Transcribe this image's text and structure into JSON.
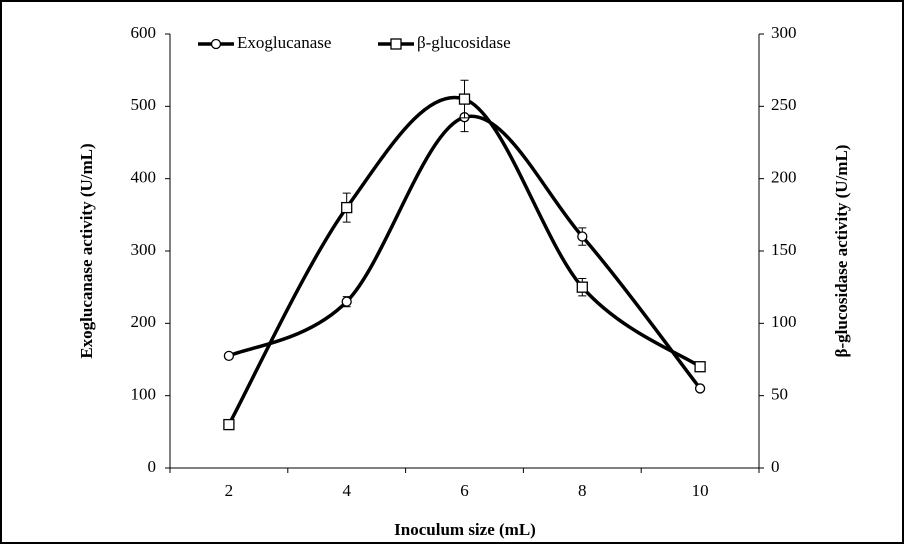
{
  "chart_data": {
    "type": "line",
    "x_label": "Inoculum size (mL)",
    "y_label": "Exoglucanase activity (U/mL)",
    "y2_label": "β-glucosidase activity (U/mL)",
    "categories": [
      "2",
      "4",
      "6",
      "8",
      "10"
    ],
    "ylim": [
      0,
      600
    ],
    "yticks": [
      0,
      100,
      200,
      300,
      400,
      500,
      600
    ],
    "y2lim": [
      0,
      300
    ],
    "y2ticks": [
      0,
      50,
      100,
      150,
      200,
      250,
      300
    ],
    "legend": "top-left",
    "series": [
      {
        "name": "Exoglucanase",
        "color": "#000000",
        "marker": "circle",
        "values": [
          155,
          230,
          485,
          320,
          110
        ],
        "errors": [
          3,
          7,
          20,
          12,
          3
        ]
      },
      {
        "name": "β-glucosidase",
        "color": "#000000",
        "marker": "square",
        "axis": "y2",
        "values": [
          30,
          180,
          255,
          125,
          70
        ],
        "errors": [
          3,
          10,
          13,
          6,
          3
        ]
      }
    ]
  }
}
